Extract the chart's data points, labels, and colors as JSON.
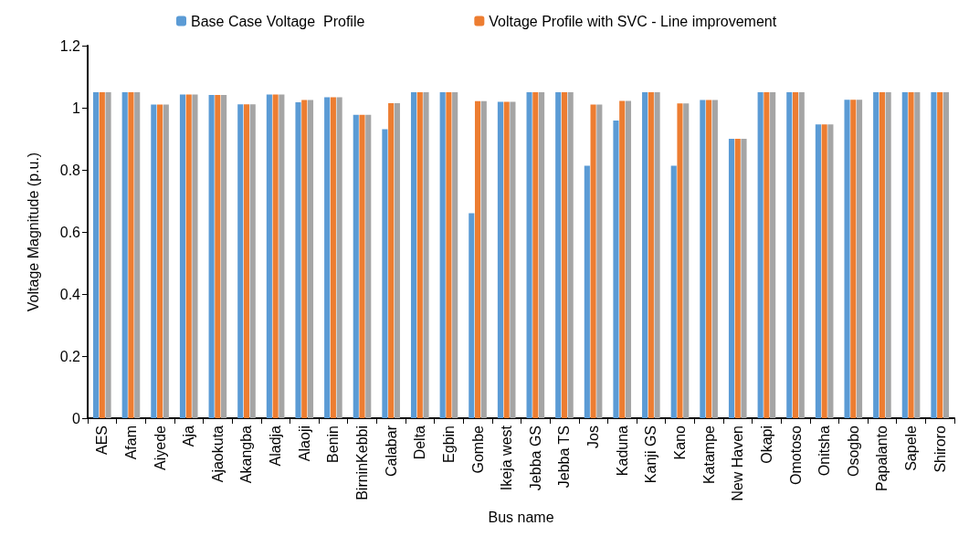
{
  "chart_data": {
    "type": "bar",
    "xlabel": "Bus name",
    "ylabel": "Voltage Magnitude (p.u.)",
    "categories": [
      "AES",
      "Afam",
      "Aiyede",
      "Aja",
      "Ajaokuta",
      "Akangba",
      "Aladja",
      "Alaoji",
      "Benin",
      "BirninKebbi",
      "Calabar",
      "Delta",
      "Egbin",
      "Gombe",
      "Ikeja west",
      "Jebba GS",
      "Jebba TS",
      "Jos",
      "Kaduna",
      "Kanji GS",
      "Kano",
      "Katampe",
      "New Haven",
      "Okapi",
      "Omotoso",
      "Onitsha",
      "Osogbo",
      "Papalanto",
      "Sapele",
      "Shiroro"
    ],
    "series": [
      {
        "name": "Base Case Voltage  Profile",
        "color": "#5b9bd5",
        "values": [
          1.05,
          1.05,
          1.01,
          1.043,
          1.041,
          1.011,
          1.043,
          1.018,
          1.034,
          0.977,
          0.931,
          1.05,
          1.05,
          0.66,
          1.019,
          1.05,
          1.05,
          0.813,
          0.959,
          1.05,
          0.813,
          1.025,
          0.9,
          1.05,
          1.05,
          0.946,
          1.026,
          1.05,
          1.05,
          1.05
        ]
      },
      {
        "name": "Voltage Profile with SVC - Line improvement",
        "color": "#ed7d31",
        "values": [
          1.05,
          1.05,
          1.01,
          1.043,
          1.041,
          1.011,
          1.043,
          1.025,
          1.034,
          0.977,
          1.015,
          1.05,
          1.05,
          1.021,
          1.019,
          1.05,
          1.05,
          1.01,
          1.022,
          1.05,
          1.014,
          1.025,
          0.9,
          1.05,
          1.05,
          0.946,
          1.026,
          1.05,
          1.05,
          1.05
        ]
      },
      {
        "color": "#a5a5a5",
        "values": [
          1.05,
          1.05,
          1.01,
          1.043,
          1.041,
          1.011,
          1.043,
          1.025,
          1.034,
          0.977,
          1.015,
          1.05,
          1.05,
          1.021,
          1.019,
          1.05,
          1.05,
          1.01,
          1.022,
          1.05,
          1.014,
          1.025,
          0.9,
          1.05,
          1.05,
          0.946,
          1.026,
          1.05,
          1.05,
          1.05
        ]
      }
    ],
    "ylim": [
      0,
      1.2
    ],
    "yticks": [
      0,
      0.2,
      0.4,
      0.6,
      0.8,
      1,
      1.2
    ],
    "grid": false,
    "legend": "top left"
  }
}
